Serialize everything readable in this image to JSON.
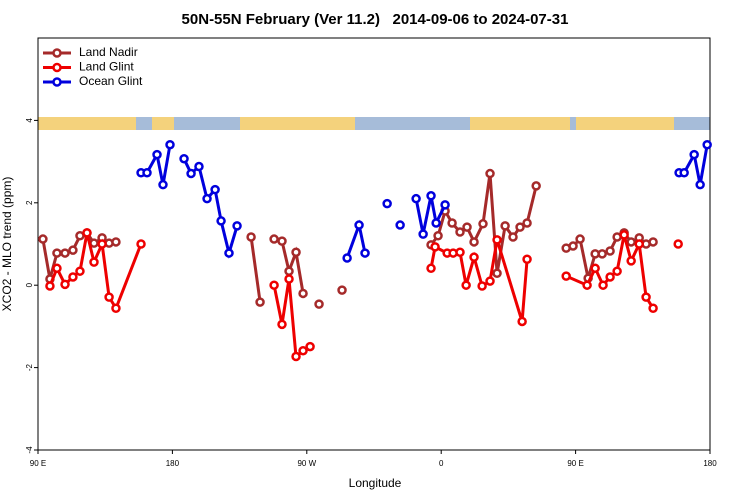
{
  "chart_data": {
    "type": "line",
    "title": "50N-55N February (Ver 11.2)   2014-09-06 to 2024-07-31",
    "x_label": "Longitude",
    "y_label": "XCO2 - MLO trend (ppm)",
    "xlim": [
      90,
      540
    ],
    "ylim": [
      -4,
      6
    ],
    "xticks": [
      {
        "value": 90,
        "label": "90 E"
      },
      180,
      {
        "value": 270,
        "label": "90 W"
      },
      {
        "value": 360,
        "label": "0"
      },
      {
        "value": 450,
        "label": "90 E"
      },
      {
        "value": 540,
        "label": "180"
      }
    ],
    "yticks": [
      -4,
      -2,
      0,
      2,
      4
    ],
    "legend": "top-left",
    "grid": false,
    "series": [
      {
        "name": "Land Nadir",
        "color": "#a52a2a",
        "x": [
          93.3,
          98,
          102.7,
          108.1,
          113.4,
          118.1,
          122.8,
          127.5,
          132.9,
          137.6,
          142.2,
          null,
          232.7,
          238.7,
          null,
          248.1,
          253.4,
          258.1,
          262.8,
          267.5,
          null,
          278.2,
          null,
          293.6,
          null,
          353.2,
          357.9,
          362.6,
          367.3,
          372.6,
          377.3,
          382,
          388,
          392.7,
          397.4,
          402.8,
          408.1,
          412.8,
          417.5,
          423.6,
          null,
          443.7,
          448.3,
          453,
          458.4,
          463.1,
          467.8,
          473.1,
          477.8,
          482.5,
          487.2,
          492.6,
          497.2,
          501.9
        ],
        "values": [
          1.12,
          0.15,
          0.78,
          0.78,
          0.85,
          1.2,
          1.27,
          1.02,
          1.15,
          1.02,
          1.05,
          null,
          1.17,
          -0.41,
          null,
          1.12,
          1.07,
          0.34,
          0.8,
          -0.2,
          null,
          -0.46,
          null,
          -0.12,
          null,
          0.98,
          1.2,
          1.8,
          1.51,
          1.29,
          1.41,
          1.05,
          1.49,
          2.71,
          0.29,
          1.44,
          1.17,
          1.41,
          1.51,
          2.41,
          null,
          0.9,
          0.95,
          1.12,
          0.17,
          0.76,
          0.76,
          0.83,
          1.17,
          1.27,
          1.05,
          1.15,
          1.0,
          1.05
        ]
      },
      {
        "name": "Land Glint",
        "color": "#ee0000",
        "x": [
          98,
          102.7,
          108.1,
          113.4,
          118.1,
          122.8,
          127.5,
          132.9,
          137.6,
          142.2,
          159,
          null,
          248.1,
          253.4,
          258.1,
          262.8,
          267.5,
          272.2,
          null,
          353.2,
          355.9,
          364,
          368,
          372.6,
          376.7,
          382,
          387.4,
          392.7,
          397.4,
          414.2,
          417.5,
          null,
          443.7,
          457.7,
          463.1,
          468.4,
          473.1,
          477.8,
          482.5,
          487.2,
          492.6,
          497.2,
          501.9,
          null,
          518.7
        ],
        "values": [
          -0.02,
          0.41,
          0.02,
          0.2,
          0.34,
          1.27,
          0.56,
          1.0,
          -0.29,
          -0.56,
          1.0,
          null,
          0.0,
          -0.95,
          0.15,
          -1.73,
          -1.59,
          -1.49,
          null,
          0.41,
          0.93,
          0.78,
          0.78,
          0.8,
          0.0,
          0.68,
          -0.02,
          0.1,
          1.1,
          -0.88,
          0.63,
          null,
          0.22,
          0.0,
          0.41,
          0.0,
          0.2,
          0.34,
          1.22,
          0.59,
          1.0,
          -0.29,
          -0.56,
          null,
          1.0
        ]
      },
      {
        "name": "Ocean Glint",
        "color": "#0000dd",
        "x": [
          159,
          163,
          169.7,
          173.7,
          178.4,
          null,
          187.8,
          192.5,
          197.8,
          203.2,
          208.6,
          212.6,
          217.9,
          223.3,
          null,
          297,
          305,
          309,
          null,
          323.8,
          null,
          332.5,
          null,
          343.2,
          347.9,
          353.2,
          356.6,
          362.6,
          null,
          519.3,
          522.7,
          529.4,
          533.4,
          538.1
        ],
        "values": [
          2.73,
          2.73,
          3.17,
          2.44,
          3.41,
          null,
          3.07,
          2.71,
          2.88,
          2.1,
          2.32,
          1.56,
          0.78,
          1.44,
          null,
          0.66,
          1.46,
          0.78,
          null,
          1.98,
          null,
          1.46,
          null,
          2.1,
          1.24,
          2.17,
          1.51,
          1.95,
          null,
          2.73,
          2.73,
          3.17,
          2.44,
          3.41
        ]
      }
    ]
  }
}
